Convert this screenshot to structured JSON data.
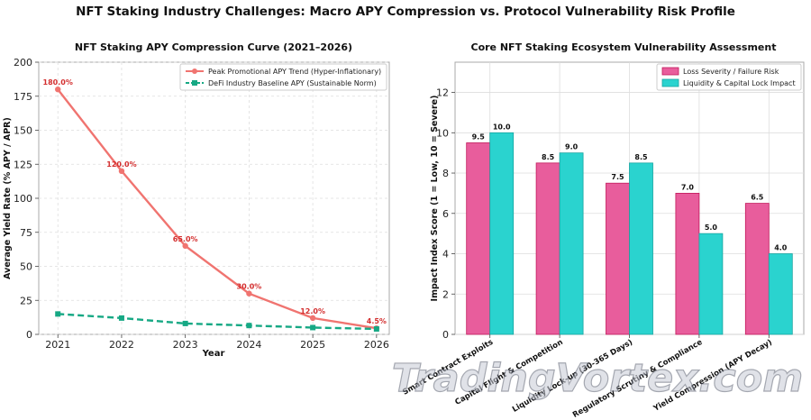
{
  "suptitle": "NFT Staking Industry Challenges: Macro APY Compression vs. Protocol Vulnerability Risk Profile",
  "watermark": "TradingVortex.com",
  "chart_data": [
    {
      "type": "line",
      "title": "NFT Staking APY Compression Curve (2021–2026)",
      "xlabel": "Year",
      "ylabel": "Average Yield Rate (% APY / APR)",
      "x": [
        2021,
        2022,
        2023,
        2024,
        2025,
        2026
      ],
      "ylim": [
        0,
        200
      ],
      "yticks": [
        0,
        25,
        50,
        75,
        100,
        125,
        150,
        175,
        200
      ],
      "grid": true,
      "legend": "top-right",
      "series": [
        {
          "name": "Peak Promotional APY Trend (Hyper-Inflationary)",
          "values": [
            180,
            120,
            65,
            30,
            12,
            4.5
          ],
          "labels": [
            "180.0%",
            "120.0%",
            "65.0%",
            "30.0%",
            "12.0%",
            "4.5%"
          ],
          "color": "#f07470",
          "marker": "circle",
          "dash": "solid"
        },
        {
          "name": "DeFi Industry Baseline APY (Sustainable Norm)",
          "values": [
            15,
            12,
            8,
            6.5,
            5,
            4
          ],
          "color": "#16a884",
          "marker": "square",
          "dash": "dashed"
        }
      ]
    },
    {
      "type": "bar",
      "title": "Core NFT Staking Ecosystem Vulnerability Assessment",
      "xlabel": "",
      "ylabel": "Impact Index Score (1 = Low, 10 = Severe)",
      "categories": [
        "Smart Contract Exploits",
        "Capital Flight & Competition",
        "Liquidity Lock-up (30-365 Days)",
        "Regulatory Scrutiny & Compliance",
        "Yield Compression (APY Decay)"
      ],
      "ylim": [
        0,
        13.5
      ],
      "yticks": [
        0,
        2,
        4,
        6,
        8,
        10,
        12
      ],
      "grid": true,
      "legend": "top-right",
      "series": [
        {
          "name": "Loss Severity / Failure Risk",
          "values": [
            9.5,
            8.5,
            7.5,
            7.0,
            6.5
          ],
          "labels": [
            "9.5",
            "8.5",
            "7.5",
            "7.0",
            "6.5"
          ],
          "color": "#e85d9c",
          "edge": "#c2185b"
        },
        {
          "name": "Liquidity & Capital Lock Impact",
          "values": [
            10.0,
            9.0,
            8.5,
            5.0,
            4.0
          ],
          "labels": [
            "10.0",
            "9.0",
            "8.5",
            "5.0",
            "4.0"
          ],
          "color": "#2ad3cf",
          "edge": "#17a5a1"
        }
      ]
    }
  ]
}
